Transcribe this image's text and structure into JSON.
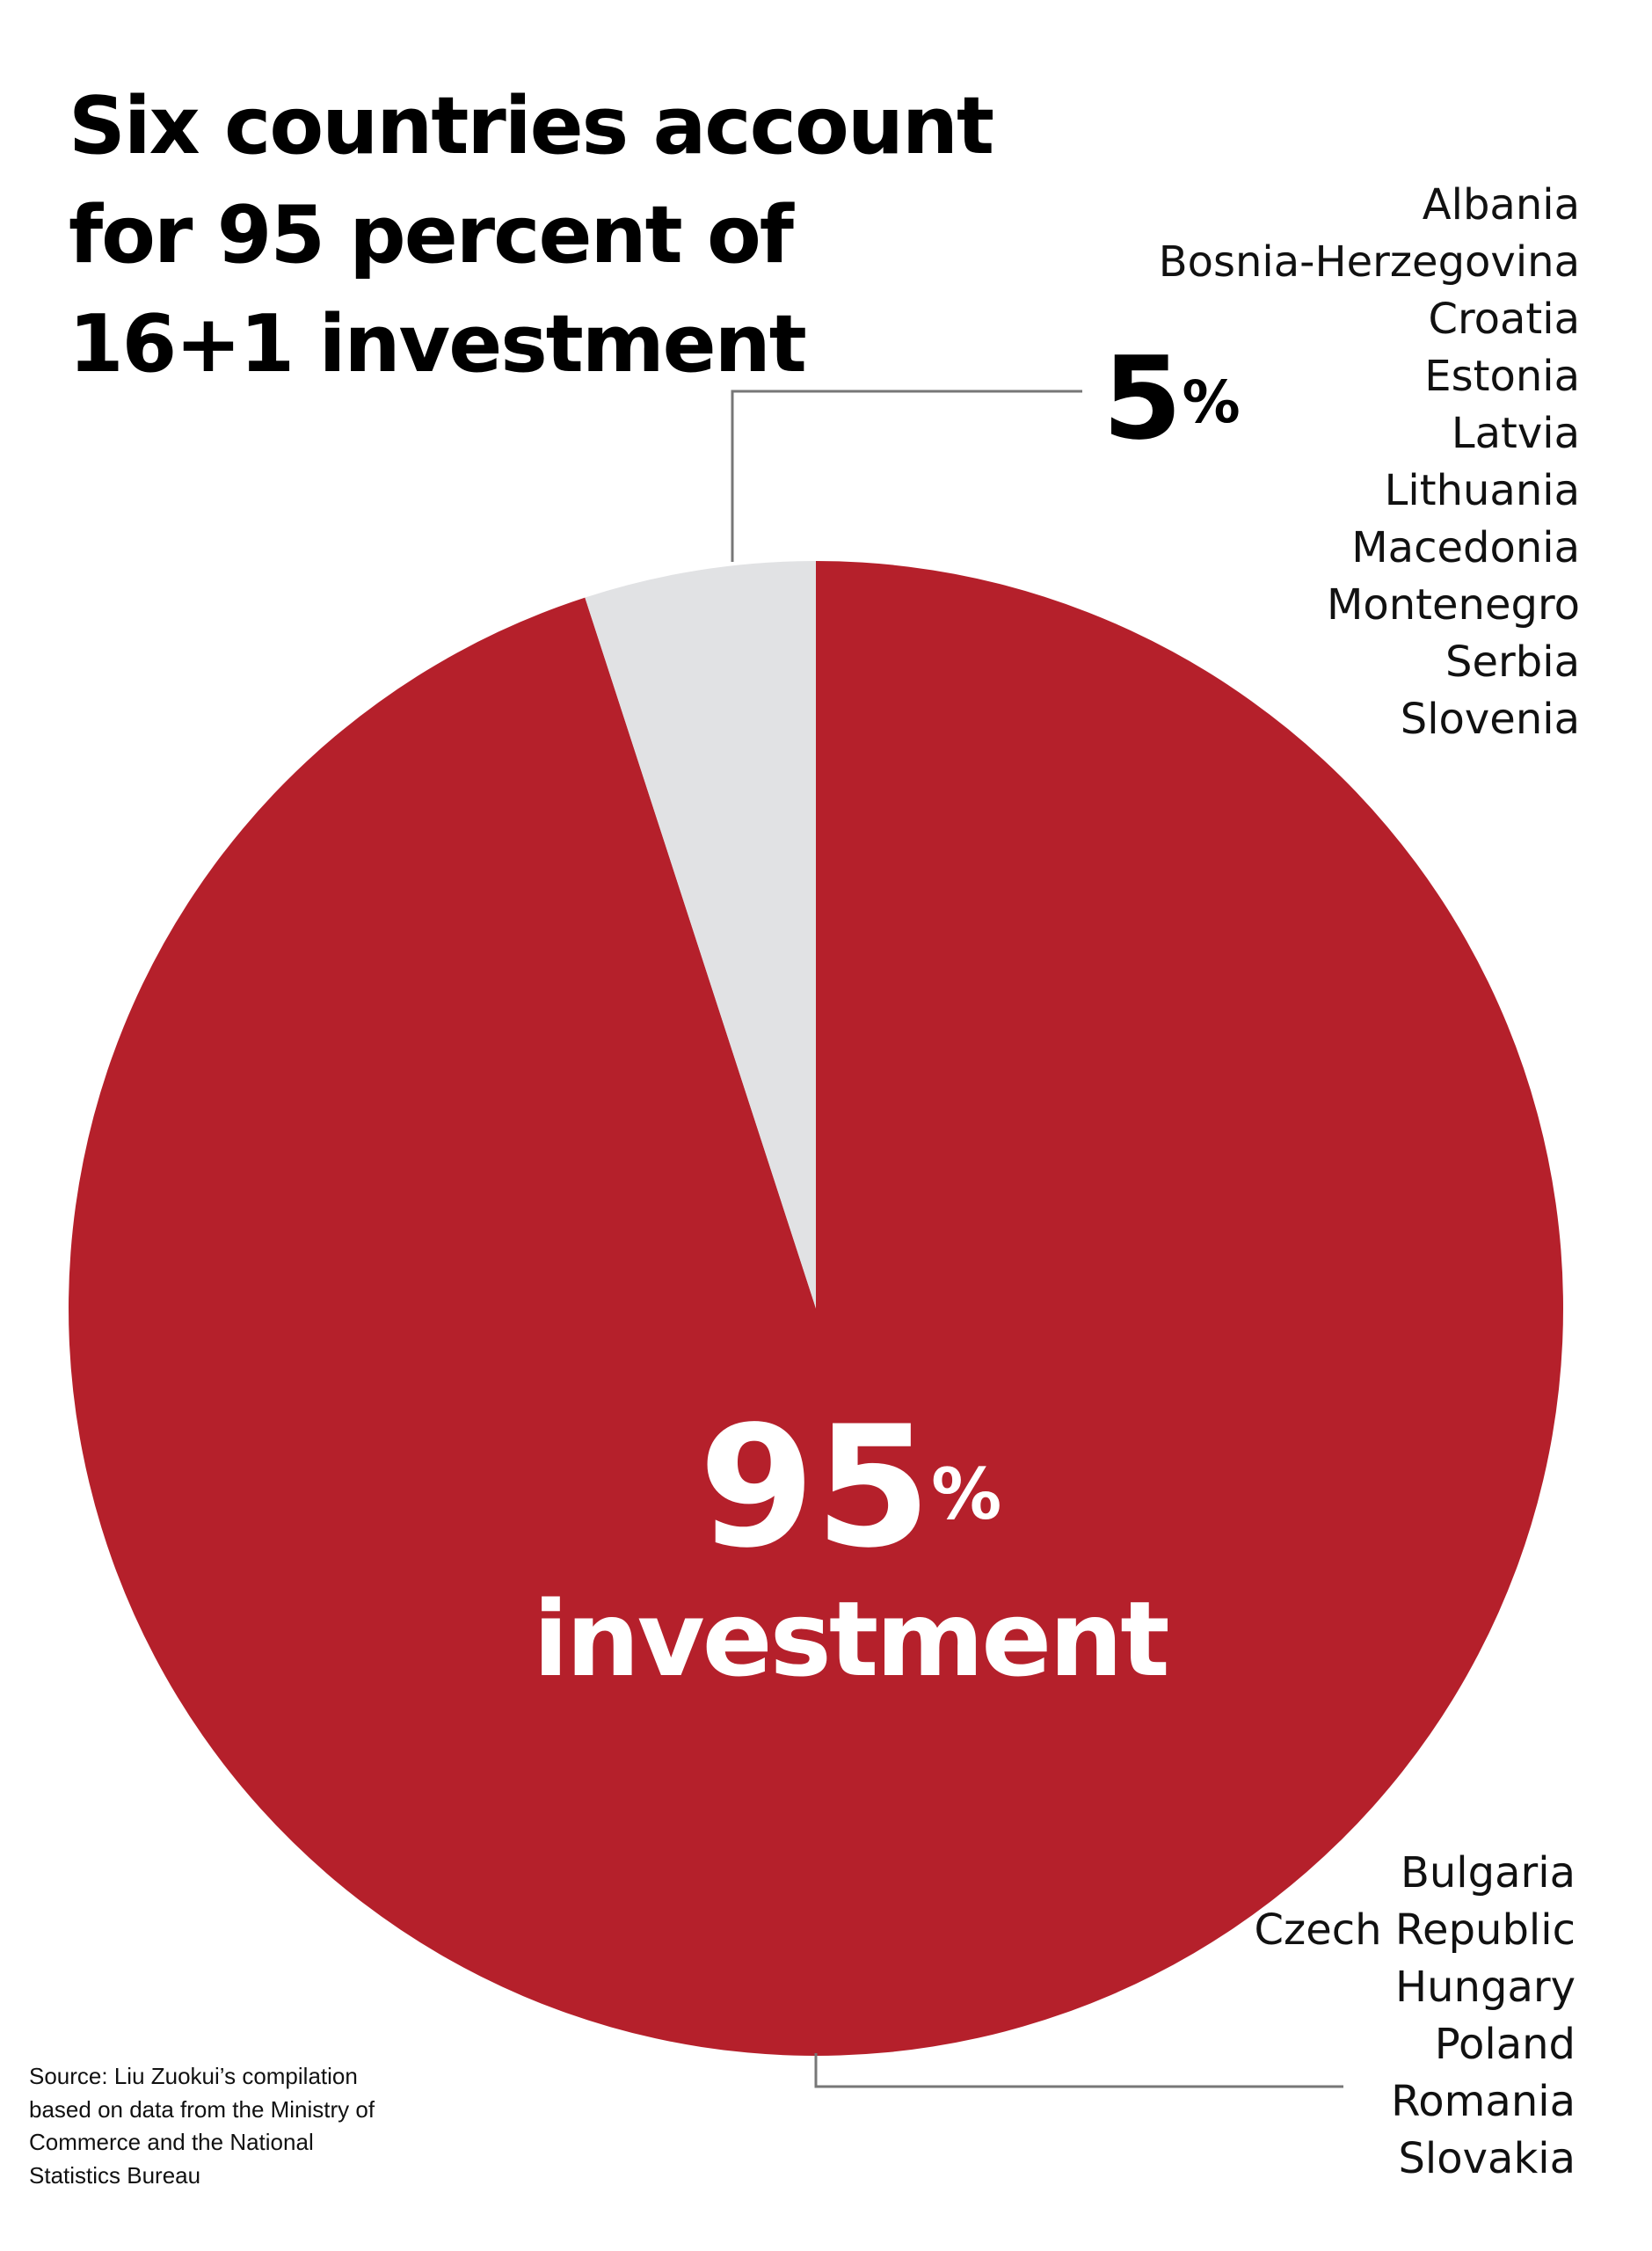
{
  "chart_data": {
    "type": "pie",
    "title": "Six countries account for 95 percent of 16+1 investment",
    "values": [
      95,
      5
    ],
    "value_labels": [
      "95%",
      "5%"
    ],
    "colors": [
      "#b5202b",
      "#e1e2e4"
    ],
    "annotation": "investment",
    "groups": [
      [
        "Bulgaria",
        "Czech Republic",
        "Hungary",
        "Poland",
        "Romania",
        "Slovakia"
      ],
      [
        "Albania",
        "Bosnia-Herzegovina",
        "Croatia",
        "Estonia",
        "Latvia",
        "Lithuania",
        "Macedonia",
        "Montenegro",
        "Serbia",
        "Slovenia"
      ]
    ],
    "source": "Source: Liu Zuokui’s compilation based on data from the Ministry of Commerce and the National Statistics Bureau"
  }
}
